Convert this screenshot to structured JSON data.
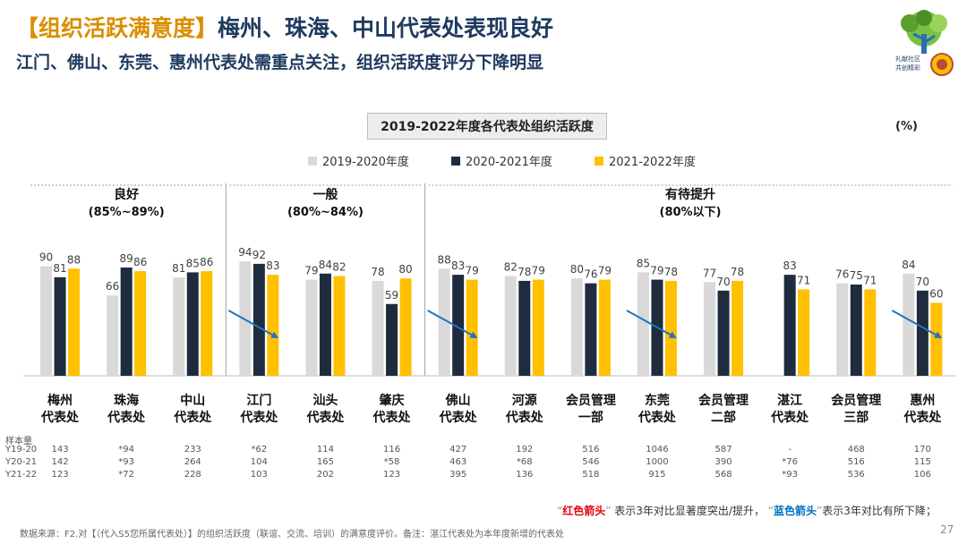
{
  "header": {
    "tag": "【组织活跃满意度】",
    "title": "梅州、珠海、中山代表处表现良好",
    "subtitle": "江门、佛山、东莞、惠州代表处需重点关注，组织活跃度评分下降明显"
  },
  "logo": {
    "text_line1": "礼献社区",
    "text_line2": "共创精彩"
  },
  "chart_data": {
    "type": "bar",
    "title": "2019-2022年度各代表处组织活跃度",
    "unit": "(%)",
    "categories": [
      [
        "梅州",
        "代表处"
      ],
      [
        "珠海",
        "代表处"
      ],
      [
        "中山",
        "代表处"
      ],
      [
        "江门",
        "代表处"
      ],
      [
        "汕头",
        "代表处"
      ],
      [
        "肇庆",
        "代表处"
      ],
      [
        "佛山",
        "代表处"
      ],
      [
        "河源",
        "代表处"
      ],
      [
        "会员管理",
        "一部"
      ],
      [
        "东莞",
        "代表处"
      ],
      [
        "会员管理",
        "二部"
      ],
      [
        "湛江",
        "代表处"
      ],
      [
        "会员管理",
        "三部"
      ],
      [
        "惠州",
        "代表处"
      ]
    ],
    "series": [
      {
        "name": "2019-2020年度",
        "color": "#d9d9d9",
        "values": [
          90,
          66,
          81,
          94,
          79,
          78,
          88,
          82,
          80,
          85,
          77,
          null,
          76,
          84
        ]
      },
      {
        "name": "2020-2021年度",
        "color": "#1e2c3d",
        "values": [
          81,
          89,
          85,
          92,
          84,
          59,
          83,
          78,
          76,
          79,
          70,
          83,
          75,
          70
        ]
      },
      {
        "name": "2021-2022年度",
        "color": "#ffc000",
        "values": [
          88,
          86,
          86,
          83,
          82,
          80,
          79,
          79,
          79,
          78,
          78,
          71,
          71,
          60
        ]
      }
    ],
    "groups": [
      {
        "label": "良好",
        "range": "(85%~89%)"
      },
      {
        "label": "一般",
        "range": "(80%~84%)"
      },
      {
        "label": "有待提升",
        "range": "(80%以下)"
      }
    ],
    "trend_arrows": [
      "江门",
      "佛山",
      "东莞",
      "惠州"
    ],
    "ylim": [
      0,
      100
    ]
  },
  "samples": {
    "title": "样本量",
    "rows": [
      {
        "label": "Y19-20",
        "values": [
          "143",
          "*94",
          "233",
          "*62",
          "114",
          "116",
          "427",
          "192",
          "516",
          "1046",
          "587",
          "-",
          "468",
          "170"
        ]
      },
      {
        "label": "Y20-21",
        "values": [
          "142",
          "*93",
          "264",
          "104",
          "165",
          "*58",
          "463",
          "*68",
          "546",
          "1000",
          "390",
          "*76",
          "516",
          "115"
        ]
      },
      {
        "label": "Y21-22",
        "values": [
          "123",
          "*72",
          "228",
          "103",
          "202",
          "123",
          "395",
          "136",
          "518",
          "915",
          "568",
          "*93",
          "536",
          "106"
        ]
      }
    ]
  },
  "note": {
    "open_q": "“",
    "red_label": "红色箭头",
    "close_q": "”",
    "red_text": "表示3年对比显著度突出/提升，",
    "blue_label": "蓝色箭头",
    "blue_text": "表示3年对比有所下降；"
  },
  "source": "数据来源：F2.对【（代入S5您所属代表处）】的组织活跃度（联谊、交流、培训）的满意度评价。备注：湛江代表处为本年度新增的代表处",
  "page_number": "27",
  "colors": {
    "arrow": "#1f72c4",
    "title": "#1f3a5f",
    "accent": "#d98e00"
  }
}
